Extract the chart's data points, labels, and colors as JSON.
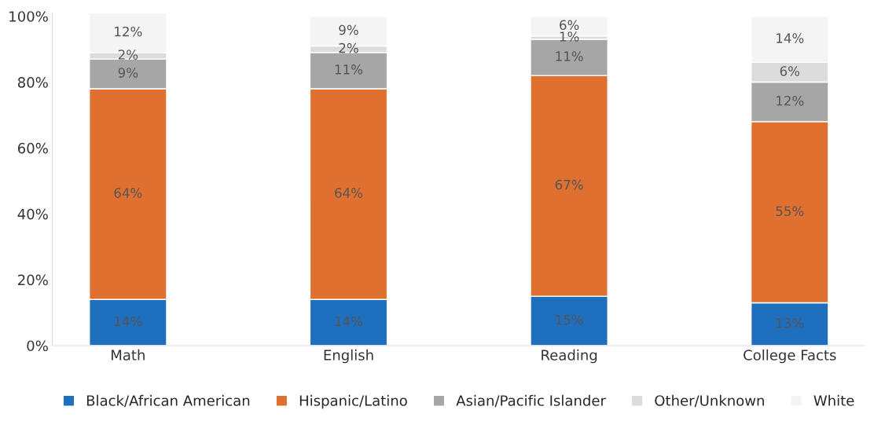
{
  "chart_data": {
    "type": "bar",
    "stacked": true,
    "categories": [
      "Math",
      "English",
      "Reading",
      "College Facts"
    ],
    "series": [
      {
        "name": "Black/African American",
        "color": "#1f6fbf",
        "values": [
          14,
          14,
          15,
          13
        ],
        "value_labels": [
          "14%",
          "14%",
          "15%",
          "13%"
        ]
      },
      {
        "name": "Hispanic/Latino",
        "color": "#e07030",
        "values": [
          64,
          64,
          67,
          55
        ],
        "value_labels": [
          "64%",
          "64%",
          "67%",
          "55%"
        ]
      },
      {
        "name": "Asian/Pacific Islander",
        "color": "#a6a6a6",
        "values": [
          9,
          11,
          11,
          12
        ],
        "value_labels": [
          "9%",
          "11%",
          "11%",
          "12%"
        ]
      },
      {
        "name": "Other/Unknown",
        "color": "#dcdcdc",
        "values": [
          2,
          2,
          1,
          6
        ],
        "value_labels": [
          "2%",
          "2%",
          "1%",
          "6%"
        ]
      },
      {
        "name": "White",
        "color": "#f4f4f4",
        "values": [
          12,
          9,
          6,
          14
        ],
        "value_labels": [
          "12%",
          "9%",
          "6%",
          "14%"
        ]
      }
    ],
    "ylim": [
      0,
      101
    ],
    "yticks": [
      {
        "value": 0,
        "label": "0%"
      },
      {
        "value": 20,
        "label": "20%"
      },
      {
        "value": 40,
        "label": "40%"
      },
      {
        "value": 60,
        "label": "60%"
      },
      {
        "value": 80,
        "label": "80%"
      },
      {
        "value": 100,
        "label": "100%"
      }
    ],
    "grid": false,
    "legend": "bottom"
  }
}
